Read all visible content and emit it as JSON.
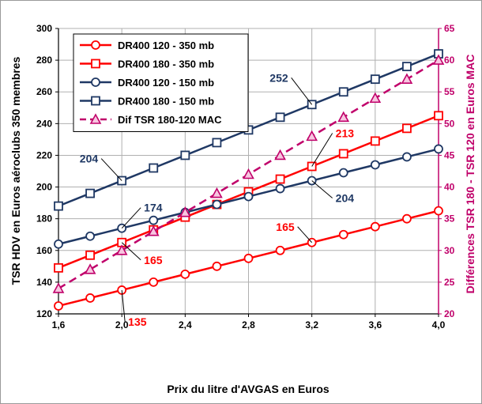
{
  "chart_data": {
    "type": "line",
    "title": "",
    "xlabel": "Prix du litre d'AVGAS en Euros",
    "ylabel": "TSR HDV en Euros aéroclubs 350 membres",
    "y2label": "Différences TSR 180 - TSR 120 en Euros MAC",
    "xlim": [
      1.6,
      4.0
    ],
    "ylim": [
      120,
      300
    ],
    "y2lim": [
      20,
      65
    ],
    "grid": true,
    "legend_position": "top-left",
    "x_ticks": [
      "1,6",
      "2,0",
      "2,4",
      "2,8",
      "3,2",
      "3,6",
      "4,0"
    ],
    "x_tick_values": [
      1.6,
      2.0,
      2.4,
      2.8,
      3.2,
      3.6,
      4.0
    ],
    "y_ticks": [
      "120",
      "140",
      "160",
      "180",
      "200",
      "220",
      "240",
      "260",
      "280",
      "300"
    ],
    "y_tick_values": [
      120,
      140,
      160,
      180,
      200,
      220,
      240,
      260,
      280,
      300
    ],
    "y2_ticks": [
      "20",
      "25",
      "30",
      "35",
      "40",
      "45",
      "50",
      "55",
      "60",
      "65"
    ],
    "y2_tick_values": [
      20,
      25,
      30,
      35,
      40,
      45,
      50,
      55,
      60,
      65
    ],
    "x": [
      1.6,
      1.8,
      2.0,
      2.2,
      2.4,
      2.6,
      2.8,
      3.0,
      3.2,
      3.4,
      3.6,
      3.8,
      4.0
    ],
    "series": [
      {
        "name": "DR400 120 - 350 mb",
        "axis": "left",
        "color": "#ff0000",
        "marker": "circle",
        "dash": false,
        "values": [
          125,
          130,
          135,
          140,
          145,
          150,
          155,
          160,
          165,
          170,
          175,
          180,
          185
        ]
      },
      {
        "name": "DR400 180 - 350 mb",
        "axis": "left",
        "color": "#ff0000",
        "marker": "square",
        "dash": false,
        "values": [
          149,
          157,
          165,
          173,
          181,
          189,
          197,
          205,
          213,
          221,
          229,
          237,
          245
        ]
      },
      {
        "name": "DR400 120 - 150 mb",
        "axis": "left",
        "color": "#1f3864",
        "marker": "circle",
        "dash": false,
        "values": [
          164,
          169,
          174,
          179,
          184,
          189,
          194,
          199,
          204,
          209,
          214,
          219,
          224
        ]
      },
      {
        "name": "DR400 180 - 150 mb",
        "axis": "left",
        "color": "#1f3864",
        "marker": "square",
        "dash": false,
        "values": [
          188,
          196,
          204,
          212,
          220,
          228,
          236,
          244,
          252,
          260,
          268,
          276,
          284
        ]
      },
      {
        "name": "Dif TSR 180-120 MAC",
        "axis": "right",
        "color": "#c0006a",
        "marker": "triangle",
        "dash": true,
        "values": [
          24,
          27,
          30,
          33,
          36,
          39,
          42,
          45,
          48,
          51,
          54,
          57,
          60
        ]
      }
    ],
    "annotations": [
      {
        "text": "135",
        "series": 0,
        "x": 2.0,
        "color": "#ff0000",
        "dx": 8,
        "dy": 40
      },
      {
        "text": "165",
        "series": 0,
        "x": 3.2,
        "color": "#ff0000",
        "dx": -22,
        "dy": -20
      },
      {
        "text": "165",
        "series": 1,
        "x": 2.0,
        "color": "#ff0000",
        "dx": 28,
        "dy": 22
      },
      {
        "text": "213",
        "series": 1,
        "x": 3.2,
        "color": "#ff0000",
        "dx": 30,
        "dy": -42
      },
      {
        "text": "174",
        "series": 2,
        "x": 2.0,
        "color": "#1f3864",
        "dx": 28,
        "dy": -26
      },
      {
        "text": "204",
        "series": 2,
        "x": 3.2,
        "color": "#1f3864",
        "dx": 30,
        "dy": 22
      },
      {
        "text": "204",
        "series": 3,
        "x": 2.0,
        "color": "#1f3864",
        "dx": -30,
        "dy": -28
      },
      {
        "text": "252",
        "series": 3,
        "x": 3.2,
        "color": "#1f3864",
        "dx": -30,
        "dy": -34
      }
    ]
  }
}
